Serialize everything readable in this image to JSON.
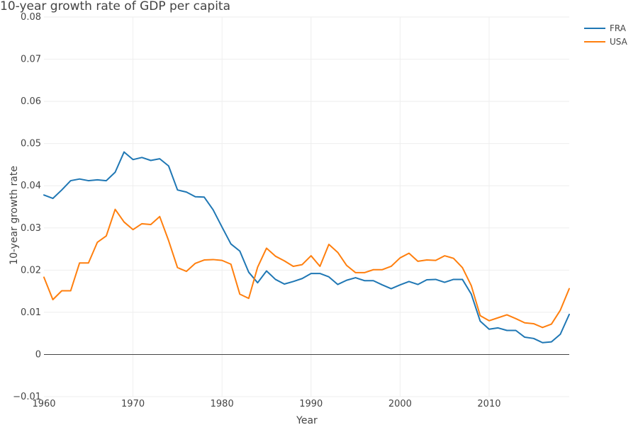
{
  "chart_data": {
    "type": "line",
    "title": "10-year growth rate of GDP per capita",
    "xlabel": "Year",
    "ylabel": "10-year growth rate",
    "xlim": [
      1960,
      2019
    ],
    "ylim": [
      -0.01,
      0.08
    ],
    "xticks": [
      1960,
      1970,
      1980,
      1990,
      2000,
      2010
    ],
    "yticks": [
      -0.01,
      0,
      0.01,
      0.02,
      0.03,
      0.04,
      0.05,
      0.06,
      0.07,
      0.08
    ],
    "ytick_labels": [
      "−0.01",
      "0",
      "0.01",
      "0.02",
      "0.03",
      "0.04",
      "0.05",
      "0.06",
      "0.07",
      "0.08"
    ],
    "legend_position": "top-right",
    "x": [
      1960,
      1961,
      1962,
      1963,
      1964,
      1965,
      1966,
      1967,
      1968,
      1969,
      1970,
      1971,
      1972,
      1973,
      1974,
      1975,
      1976,
      1977,
      1978,
      1979,
      1980,
      1981,
      1982,
      1983,
      1984,
      1985,
      1986,
      1987,
      1988,
      1989,
      1990,
      1991,
      1992,
      1993,
      1994,
      1995,
      1996,
      1997,
      1998,
      1999,
      2000,
      2001,
      2002,
      2003,
      2004,
      2005,
      2006,
      2007,
      2008,
      2009,
      2010,
      2011,
      2012,
      2013,
      2014,
      2015,
      2016,
      2017,
      2018,
      2019
    ],
    "series": [
      {
        "name": "FRA",
        "color": "#1f77b4",
        "values": [
          0.0378,
          0.037,
          0.039,
          0.0412,
          0.0416,
          0.0412,
          0.0414,
          0.0412,
          0.0432,
          0.048,
          0.0462,
          0.0467,
          0.046,
          0.0464,
          0.0447,
          0.039,
          0.0385,
          0.0374,
          0.0373,
          0.0343,
          0.0302,
          0.0262,
          0.0245,
          0.0195,
          0.017,
          0.0198,
          0.0178,
          0.0167,
          0.0173,
          0.018,
          0.0192,
          0.0192,
          0.0184,
          0.0166,
          0.0176,
          0.0182,
          0.0175,
          0.0175,
          0.0165,
          0.0156,
          0.0165,
          0.0173,
          0.0166,
          0.0177,
          0.0178,
          0.0171,
          0.0178,
          0.0178,
          0.0143,
          0.0079,
          0.006,
          0.0063,
          0.0057,
          0.0057,
          0.0041,
          0.0038,
          0.0028,
          0.003,
          0.0048,
          0.0095
        ]
      },
      {
        "name": "USA",
        "color": "#ff7f0e",
        "values": [
          0.0183,
          0.013,
          0.0151,
          0.0151,
          0.0217,
          0.0217,
          0.0266,
          0.0281,
          0.0344,
          0.0314,
          0.0296,
          0.031,
          0.0308,
          0.0327,
          0.027,
          0.0206,
          0.0197,
          0.0216,
          0.0224,
          0.0225,
          0.0223,
          0.0214,
          0.0143,
          0.0133,
          0.0207,
          0.0252,
          0.0233,
          0.0222,
          0.0209,
          0.0213,
          0.0234,
          0.0209,
          0.0261,
          0.0242,
          0.0211,
          0.0194,
          0.0194,
          0.0201,
          0.0201,
          0.0209,
          0.0229,
          0.024,
          0.0221,
          0.0224,
          0.0223,
          0.0234,
          0.0228,
          0.0206,
          0.0163,
          0.0092,
          0.008,
          0.0087,
          0.0094,
          0.0085,
          0.0075,
          0.0073,
          0.0064,
          0.0072,
          0.0105,
          0.0156
        ]
      }
    ]
  }
}
